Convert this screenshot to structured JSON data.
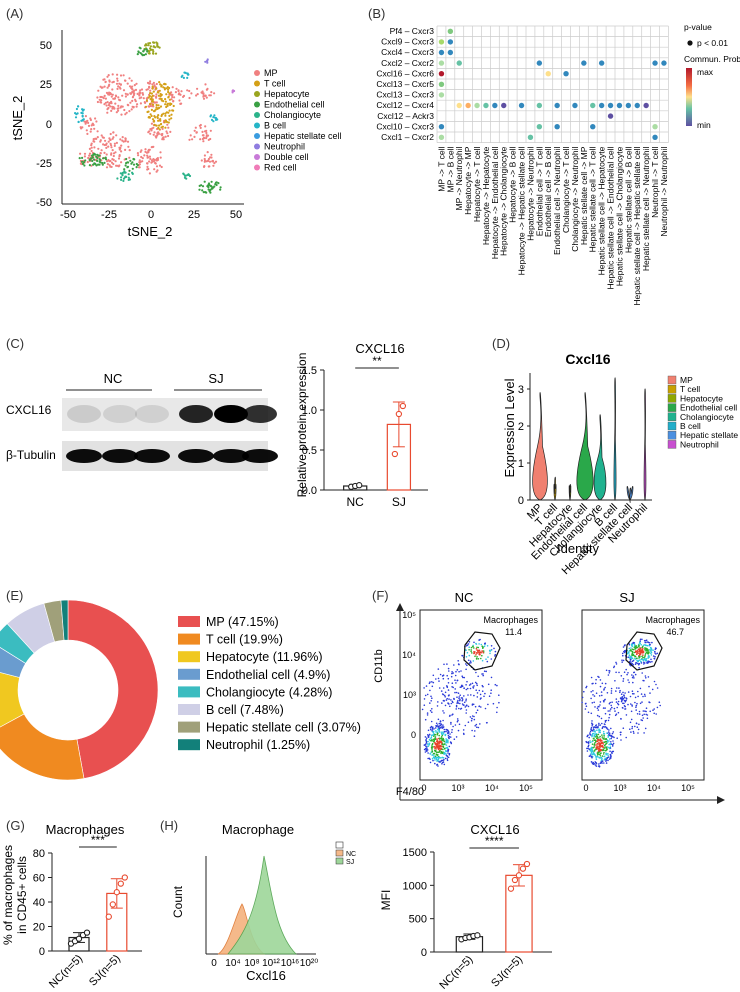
{
  "panels": {
    "A": "(A)",
    "B": "(B)",
    "C": "(C)",
    "D": "(D)",
    "E": "(E)",
    "F": "(F)",
    "G": "(G)",
    "H": "(H)"
  },
  "panel_a": {
    "xlabel": "tSNE_2",
    "ylabel": "tSNE_2",
    "xticks": [
      "-50",
      "-25",
      "0",
      "25",
      "50"
    ],
    "yticks": [
      "50",
      "25",
      "0",
      "-25",
      "-50"
    ],
    "legend": [
      {
        "label": "MP",
        "color": "#f08080"
      },
      {
        "label": "T cell",
        "color": "#d4a017"
      },
      {
        "label": "Hepatocyte",
        "color": "#9aa51f"
      },
      {
        "label": "Endothelial cell",
        "color": "#3aa043"
      },
      {
        "label": "Cholangiocyte",
        "color": "#2bb38a"
      },
      {
        "label": "B cell",
        "color": "#25b5c7"
      },
      {
        "label": "Hepatic stellate cell",
        "color": "#3a9ce0"
      },
      {
        "label": "Neutrophil",
        "color": "#8f7de0"
      },
      {
        "label": "Double cell",
        "color": "#c87ad8"
      },
      {
        "label": "Red cell",
        "color": "#f07cb8"
      }
    ]
  },
  "panel_b": {
    "rows": [
      "Pf4 – Cxcr3",
      "Cxcl9 – Cxcr3",
      "Cxcl4 – Cxcr3",
      "Cxcl2 – Cxcr2",
      "Cxcl16 – Cxcr6",
      "Cxcl13 – Cxcr5",
      "Cxcl13 – Cxcr3",
      "Cxcl12 – Cxcr4",
      "Cxcl12 – Ackr3",
      "Cxcl10 – Cxcr3",
      "Cxcl1 – Cxcr2"
    ],
    "cols": [
      "MP -> T cell",
      "MP -> B cell",
      "MP -> Neutrophil",
      "Hepatocyte -> MP",
      "Hepatocyte -> T cell",
      "Hepatocyte -> Hepatocyte",
      "Hepatocyte -> Endothelial cell",
      "Hepatocyte -> Cholangiocyte",
      "Hepatocyte -> B cell",
      "Hepatocyte -> Hepatic stellate cell",
      "Hepatocyte -> Neutrophil",
      "Endothelial cell -> T cell",
      "Endothelial cell -> B cell",
      "Endothelial cell -> Neutrophil",
      "Cholangiocyte -> T cell",
      "Cholangiocyte -> Neutrophil",
      "Hepatic stellate cell -> MP",
      "Hepatic stellate cell -> T cell",
      "Hepatic stellate cell -> Hepatocyte",
      "Hepatic stellate cell -> Endothelial cell",
      "Hepatic stellate cell -> Cholangiocyte",
      "Hepatic stellate cell -> B cell",
      "Hepatic stellate cell -> Hepatic stellate cell",
      "Hepatic stellate cell -> Neutrophil",
      "Neutrophil -> T cell",
      "Neutrophil -> Neutrophil"
    ],
    "legend_pvalue": "p-value",
    "legend_sig": "p < 0.01",
    "legend_prob": "Commun. Prob.",
    "legend_max": "max",
    "legend_min": "min"
  },
  "panel_c": {
    "group_nc": "NC",
    "group_sj": "SJ",
    "row1": "CXCL16",
    "row2": "β-Tubulin"
  },
  "panel_d": {
    "title": "Cxcl16",
    "ylabel": "Expression Level",
    "xlabel": "Identity",
    "yticks": [
      "0",
      "1",
      "2",
      "3"
    ],
    "categories": [
      "MP",
      "T cell",
      "Hepatocyte",
      "Endothelial cell",
      "Cholangiocyte",
      "B cell",
      "Hepatic stellate cell",
      "Neutrophil"
    ],
    "colors": [
      "#f08070",
      "#c8a000",
      "#8fa800",
      "#2aa84a",
      "#20b28f",
      "#22aeca",
      "#4b8fe0",
      "#c84fd0"
    ]
  },
  "panel_e": {
    "legend": [
      {
        "label": "MP (47.15%)",
        "value": 47.15,
        "color": "#e85050"
      },
      {
        "label": "T cell (19.9%)",
        "value": 19.9,
        "color": "#f08a20"
      },
      {
        "label": "Hepatocyte (11.96%)",
        "value": 11.96,
        "color": "#f0c820"
      },
      {
        "label": "Endothelial cell (4.9%)",
        "value": 4.9,
        "color": "#6a9ccf"
      },
      {
        "label": "Cholangiocyte (4.28%)",
        "value": 4.28,
        "color": "#3bbcc0"
      },
      {
        "label": "B cell (7.48%)",
        "value": 7.48,
        "color": "#cfcfe6"
      },
      {
        "label": "Hepatic stellate cell (3.07%)",
        "value": 3.07,
        "color": "#a0a07a"
      },
      {
        "label": "Neutrophil (1.25%)",
        "value": 1.25,
        "color": "#12807a"
      }
    ]
  },
  "panel_f": {
    "nc_title": "NC",
    "sj_title": "SJ",
    "gate": "Macrophages",
    "nc_value": "11.4",
    "sj_value": "46.7",
    "ylabel": "CD11b",
    "xlabel": "F4/80",
    "yticks": [
      "10⁵",
      "10⁴",
      "10³",
      "0"
    ],
    "xticks": [
      "0",
      "10³",
      "10⁴",
      "10⁵"
    ]
  },
  "panel_g": {
    "title": "Macrophages",
    "ylabel1": "% of macrophages",
    "ylabel2": "in CD45+ cells",
    "sig": "***",
    "yticks": [
      "0",
      "20",
      "40",
      "60",
      "80"
    ],
    "categories": [
      "NC(n=5)",
      "SJ(n=5)"
    ]
  },
  "panel_h": {
    "title": "Macrophage",
    "ylabel": "Count",
    "xlabel": "Cxcl16",
    "legend": [
      "NC",
      "SJ"
    ],
    "xticks": [
      "0",
      "10⁴",
      "10⁸",
      "10¹²",
      "10¹⁶",
      "10²⁰"
    ]
  },
  "panel_h2": {
    "title": "CXCL16",
    "ylabel": "MFI",
    "sig": "****",
    "yticks": [
      "0",
      "500",
      "1000",
      "1500"
    ],
    "categories": [
      "NC(n=5)",
      "SJ(n=5)"
    ]
  },
  "chart_data": [
    {
      "type": "bar",
      "title": "CXCL16",
      "ylabel": "Relative protein expression",
      "categories": [
        "NC",
        "SJ"
      ],
      "values": [
        0.05,
        0.82
      ],
      "error": [
        0.02,
        0.28
      ],
      "points": [
        [
          0.04,
          0.05,
          0.06
        ],
        [
          0.45,
          0.95,
          1.05
        ]
      ],
      "ylim": [
        0,
        1.5
      ],
      "yticks": [
        "0.0",
        "0.5",
        "1.0",
        "1.5"
      ],
      "significance": "**"
    },
    {
      "type": "bar",
      "title": "Macrophages",
      "ylabel": "% of macrophages in CD45+ cells",
      "categories": [
        "NC(n=5)",
        "SJ(n=5)"
      ],
      "values": [
        11,
        47
      ],
      "error": [
        4,
        12
      ],
      "points": [
        [
          6,
          8,
          10,
          13,
          15
        ],
        [
          28,
          38,
          48,
          55,
          60
        ]
      ],
      "ylim": [
        0,
        80
      ],
      "significance": "***"
    },
    {
      "type": "bar",
      "title": "CXCL16",
      "ylabel": "MFI",
      "categories": [
        "NC(n=5)",
        "SJ(n=5)"
      ],
      "values": [
        230,
        1150
      ],
      "error": [
        40,
        160
      ],
      "points": [
        [
          190,
          210,
          220,
          240,
          250
        ],
        [
          950,
          1080,
          1150,
          1250,
          1320
        ]
      ],
      "ylim": [
        0,
        1500
      ],
      "significance": "****"
    },
    {
      "type": "pie",
      "title": "",
      "categories": [
        "MP",
        "T cell",
        "Hepatocyte",
        "Endothelial cell",
        "Cholangiocyte",
        "B cell",
        "Hepatic stellate cell",
        "Neutrophil"
      ],
      "values": [
        47.15,
        19.9,
        11.96,
        4.9,
        4.28,
        7.48,
        3.07,
        1.25
      ]
    }
  ]
}
